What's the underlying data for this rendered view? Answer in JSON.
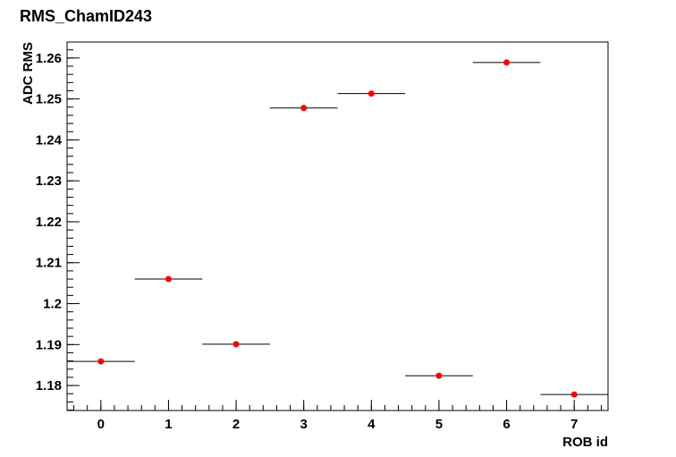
{
  "chart_data": {
    "type": "scatter",
    "title": "RMS_ChamID243",
    "x_label": "ROB id",
    "y_label": "ADC RMS",
    "x": [
      0,
      1,
      2,
      3,
      4,
      5,
      6,
      7
    ],
    "series": [
      {
        "color": "#ff0000",
        "values": [
          1.1859,
          1.206,
          1.1901,
          1.2478,
          1.2513,
          1.1824,
          1.2589,
          1.1778
        ]
      }
    ],
    "xlim": [
      -0.5,
      7.5
    ],
    "xticks": [
      0,
      1,
      2,
      3,
      4,
      5,
      6,
      7
    ],
    "ylim": [
      1.1739,
      1.2639
    ],
    "yticks": [
      1.18,
      1.19,
      1.2,
      1.21,
      1.22,
      1.23,
      1.24,
      1.25,
      1.26
    ]
  }
}
